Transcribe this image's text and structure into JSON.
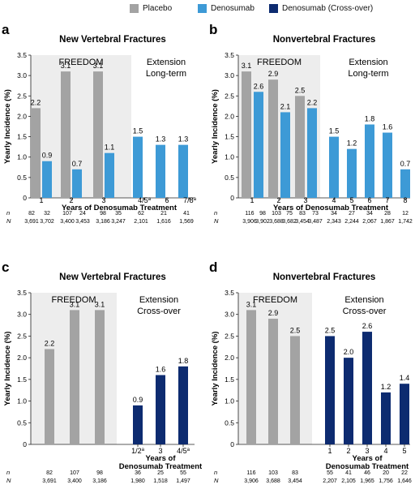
{
  "legend": [
    {
      "label": "Placebo",
      "color": "#a3a3a3"
    },
    {
      "label": "Denosumab",
      "color": "#3d9ad6"
    },
    {
      "label": "Denosumab (Cross-over)",
      "color": "#0d2b70"
    }
  ],
  "colors": {
    "placebo": "#a3a3a3",
    "denosumab": "#3d9ad6",
    "crossover": "#0d2b70",
    "shade": "#ededed"
  },
  "chart_data": [
    {
      "panel": "a",
      "type": "bar",
      "title": "New Vertebral Fractures",
      "ylabel": "Yearly Incidence (%)",
      "xlabel": "Years of Denosumab Treatment",
      "ylim": [
        0,
        3.5
      ],
      "yticks": [
        "0",
        "0.5",
        "1.0",
        "1.5",
        "2.0",
        "2.5",
        "3.0",
        "3.5"
      ],
      "region_labels": [
        "FREEDOM",
        "Extension"
      ],
      "region_sublabel": "Long-term",
      "categories": [
        "1",
        "2",
        "3",
        "4/5",
        "6",
        "7/8"
      ],
      "category_superscripts": [
        "",
        "",
        "",
        "a",
        "",
        "a"
      ],
      "bars": [
        {
          "series": "placebo",
          "value": 2.2,
          "label": "2.2",
          "category": 0
        },
        {
          "series": "denosumab",
          "value": 0.9,
          "label": "0.9",
          "category": 0
        },
        {
          "series": "placebo",
          "value": 3.1,
          "label": "3.1",
          "category": 1
        },
        {
          "series": "denosumab",
          "value": 0.7,
          "label": "0.7",
          "category": 1
        },
        {
          "series": "placebo",
          "value": 3.1,
          "label": "3.1",
          "category": 2
        },
        {
          "series": "denosumab",
          "value": 1.1,
          "label": "1.1",
          "category": 2
        },
        {
          "series": "denosumab",
          "value": 1.5,
          "label": "1.5",
          "category": 3
        },
        {
          "series": "denosumab",
          "value": 1.3,
          "label": "1.3",
          "category": 4
        },
        {
          "series": "denosumab",
          "value": 1.3,
          "label": "1.3",
          "category": 5
        }
      ],
      "n_label": "n",
      "N_label": "N",
      "n_values": [
        "82",
        "32",
        "107",
        "24",
        "98",
        "35",
        "62",
        "21",
        "41"
      ],
      "N_values": [
        "3,691",
        "3,702",
        "3,400",
        "3,453",
        "3,186",
        "3,247",
        "2,101",
        "1,616",
        "1,569"
      ]
    },
    {
      "panel": "b",
      "type": "bar",
      "title": "Nonvertebral Fractures",
      "ylabel": "Yearly Incidence (%)",
      "xlabel": "Years of Denosumab Treatment",
      "ylim": [
        0,
        3.5
      ],
      "yticks": [
        "0",
        "0.5",
        "1.0",
        "1.5",
        "2.0",
        "2.5",
        "3.0",
        "3.5"
      ],
      "region_labels": [
        "FREEDOM",
        "Extension"
      ],
      "region_sublabel": "Long-term",
      "categories": [
        "1",
        "2",
        "3",
        "4",
        "5",
        "6",
        "7",
        "8"
      ],
      "category_superscripts": [
        "",
        "",
        "",
        "",
        "",
        "",
        "",
        ""
      ],
      "bars": [
        {
          "series": "placebo",
          "value": 3.1,
          "label": "3.1",
          "category": 0
        },
        {
          "series": "denosumab",
          "value": 2.6,
          "label": "2.6",
          "category": 0
        },
        {
          "series": "placebo",
          "value": 2.9,
          "label": "2.9",
          "category": 1
        },
        {
          "series": "denosumab",
          "value": 2.1,
          "label": "2.1",
          "category": 1
        },
        {
          "series": "placebo",
          "value": 2.5,
          "label": "2.5",
          "category": 2
        },
        {
          "series": "denosumab",
          "value": 2.2,
          "label": "2.2",
          "category": 2
        },
        {
          "series": "denosumab",
          "value": 1.5,
          "label": "1.5",
          "category": 3
        },
        {
          "series": "denosumab",
          "value": 1.2,
          "label": "1.2",
          "category": 4
        },
        {
          "series": "denosumab",
          "value": 1.8,
          "label": "1.8",
          "category": 5
        },
        {
          "series": "denosumab",
          "value": 1.6,
          "label": "1.6",
          "category": 6
        },
        {
          "series": "denosumab",
          "value": 0.7,
          "label": "0.7",
          "category": 7
        }
      ],
      "n_label": "n",
      "N_label": "N",
      "n_values": [
        "116",
        "98",
        "103",
        "75",
        "83",
        "73",
        "34",
        "27",
        "34",
        "28",
        "12"
      ],
      "N_values": [
        "3,906",
        "3,902",
        "3,688",
        "3,682",
        "3,454",
        "3,487",
        "2,343",
        "2,244",
        "2,067",
        "1,867",
        "1,742"
      ]
    },
    {
      "panel": "c",
      "type": "bar",
      "title": "New Vertebral Fractures",
      "ylabel": "Yearly Incidence (%)",
      "xlabel": "Years of Denosumab Treatment",
      "ylim": [
        0,
        3.5
      ],
      "yticks": [
        "0",
        "0.5",
        "1.0",
        "1.5",
        "2.0",
        "2.5",
        "3.0",
        "3.5"
      ],
      "region_labels": [
        "FREEDOM",
        "Extension"
      ],
      "region_sublabel": "Cross-over",
      "categories": [
        "1/2",
        "3",
        "4/5"
      ],
      "category_superscripts": [
        "a",
        "",
        "a"
      ],
      "bars": [
        {
          "series": "placebo",
          "value": 2.2,
          "label": "2.2",
          "category": -1
        },
        {
          "series": "placebo",
          "value": 3.1,
          "label": "3.1",
          "category": -1
        },
        {
          "series": "placebo",
          "value": 3.1,
          "label": "3.1",
          "category": -1
        },
        {
          "series": "crossover",
          "value": 0.9,
          "label": "0.9",
          "category": 0
        },
        {
          "series": "crossover",
          "value": 1.6,
          "label": "1.6",
          "category": 1
        },
        {
          "series": "crossover",
          "value": 1.8,
          "label": "1.8",
          "category": 2
        }
      ],
      "n_label": "n",
      "N_label": "N",
      "n_values": [
        "82",
        "107",
        "98",
        "36",
        "25",
        "55"
      ],
      "N_values": [
        "3,691",
        "3,400",
        "3,186",
        "1,980",
        "1,518",
        "1,497"
      ]
    },
    {
      "panel": "d",
      "type": "bar",
      "title": "Nonvertebral Fractures",
      "ylabel": "Yearly Incidence (%)",
      "xlabel": "Years of Denosumab Treatment",
      "ylim": [
        0,
        3.5
      ],
      "yticks": [
        "0",
        "0.5",
        "1.0",
        "1.5",
        "2.0",
        "2.5",
        "3.0",
        "3.5"
      ],
      "region_labels": [
        "FREEDOM",
        "Extension"
      ],
      "region_sublabel": "Cross-over",
      "categories": [
        "1",
        "2",
        "3",
        "4",
        "5"
      ],
      "category_superscripts": [
        "",
        "",
        "",
        "",
        ""
      ],
      "bars": [
        {
          "series": "placebo",
          "value": 3.1,
          "label": "3.1",
          "category": -1
        },
        {
          "series": "placebo",
          "value": 2.9,
          "label": "2.9",
          "category": -1
        },
        {
          "series": "placebo",
          "value": 2.5,
          "label": "2.5",
          "category": -1
        },
        {
          "series": "crossover",
          "value": 2.5,
          "label": "2.5",
          "category": 0
        },
        {
          "series": "crossover",
          "value": 2.0,
          "label": "2.0",
          "category": 1
        },
        {
          "series": "crossover",
          "value": 2.6,
          "label": "2.6",
          "category": 2
        },
        {
          "series": "crossover",
          "value": 1.2,
          "label": "1.2",
          "category": 3
        },
        {
          "series": "crossover",
          "value": 1.4,
          "label": "1.4",
          "category": 4
        }
      ],
      "n_label": "n",
      "N_label": "N",
      "n_values": [
        "116",
        "103",
        "83",
        "55",
        "41",
        "46",
        "20",
        "22"
      ],
      "N_values": [
        "3,906",
        "3,688",
        "3,454",
        "2,207",
        "2,105",
        "1,965",
        "1,756",
        "1,646"
      ]
    }
  ]
}
